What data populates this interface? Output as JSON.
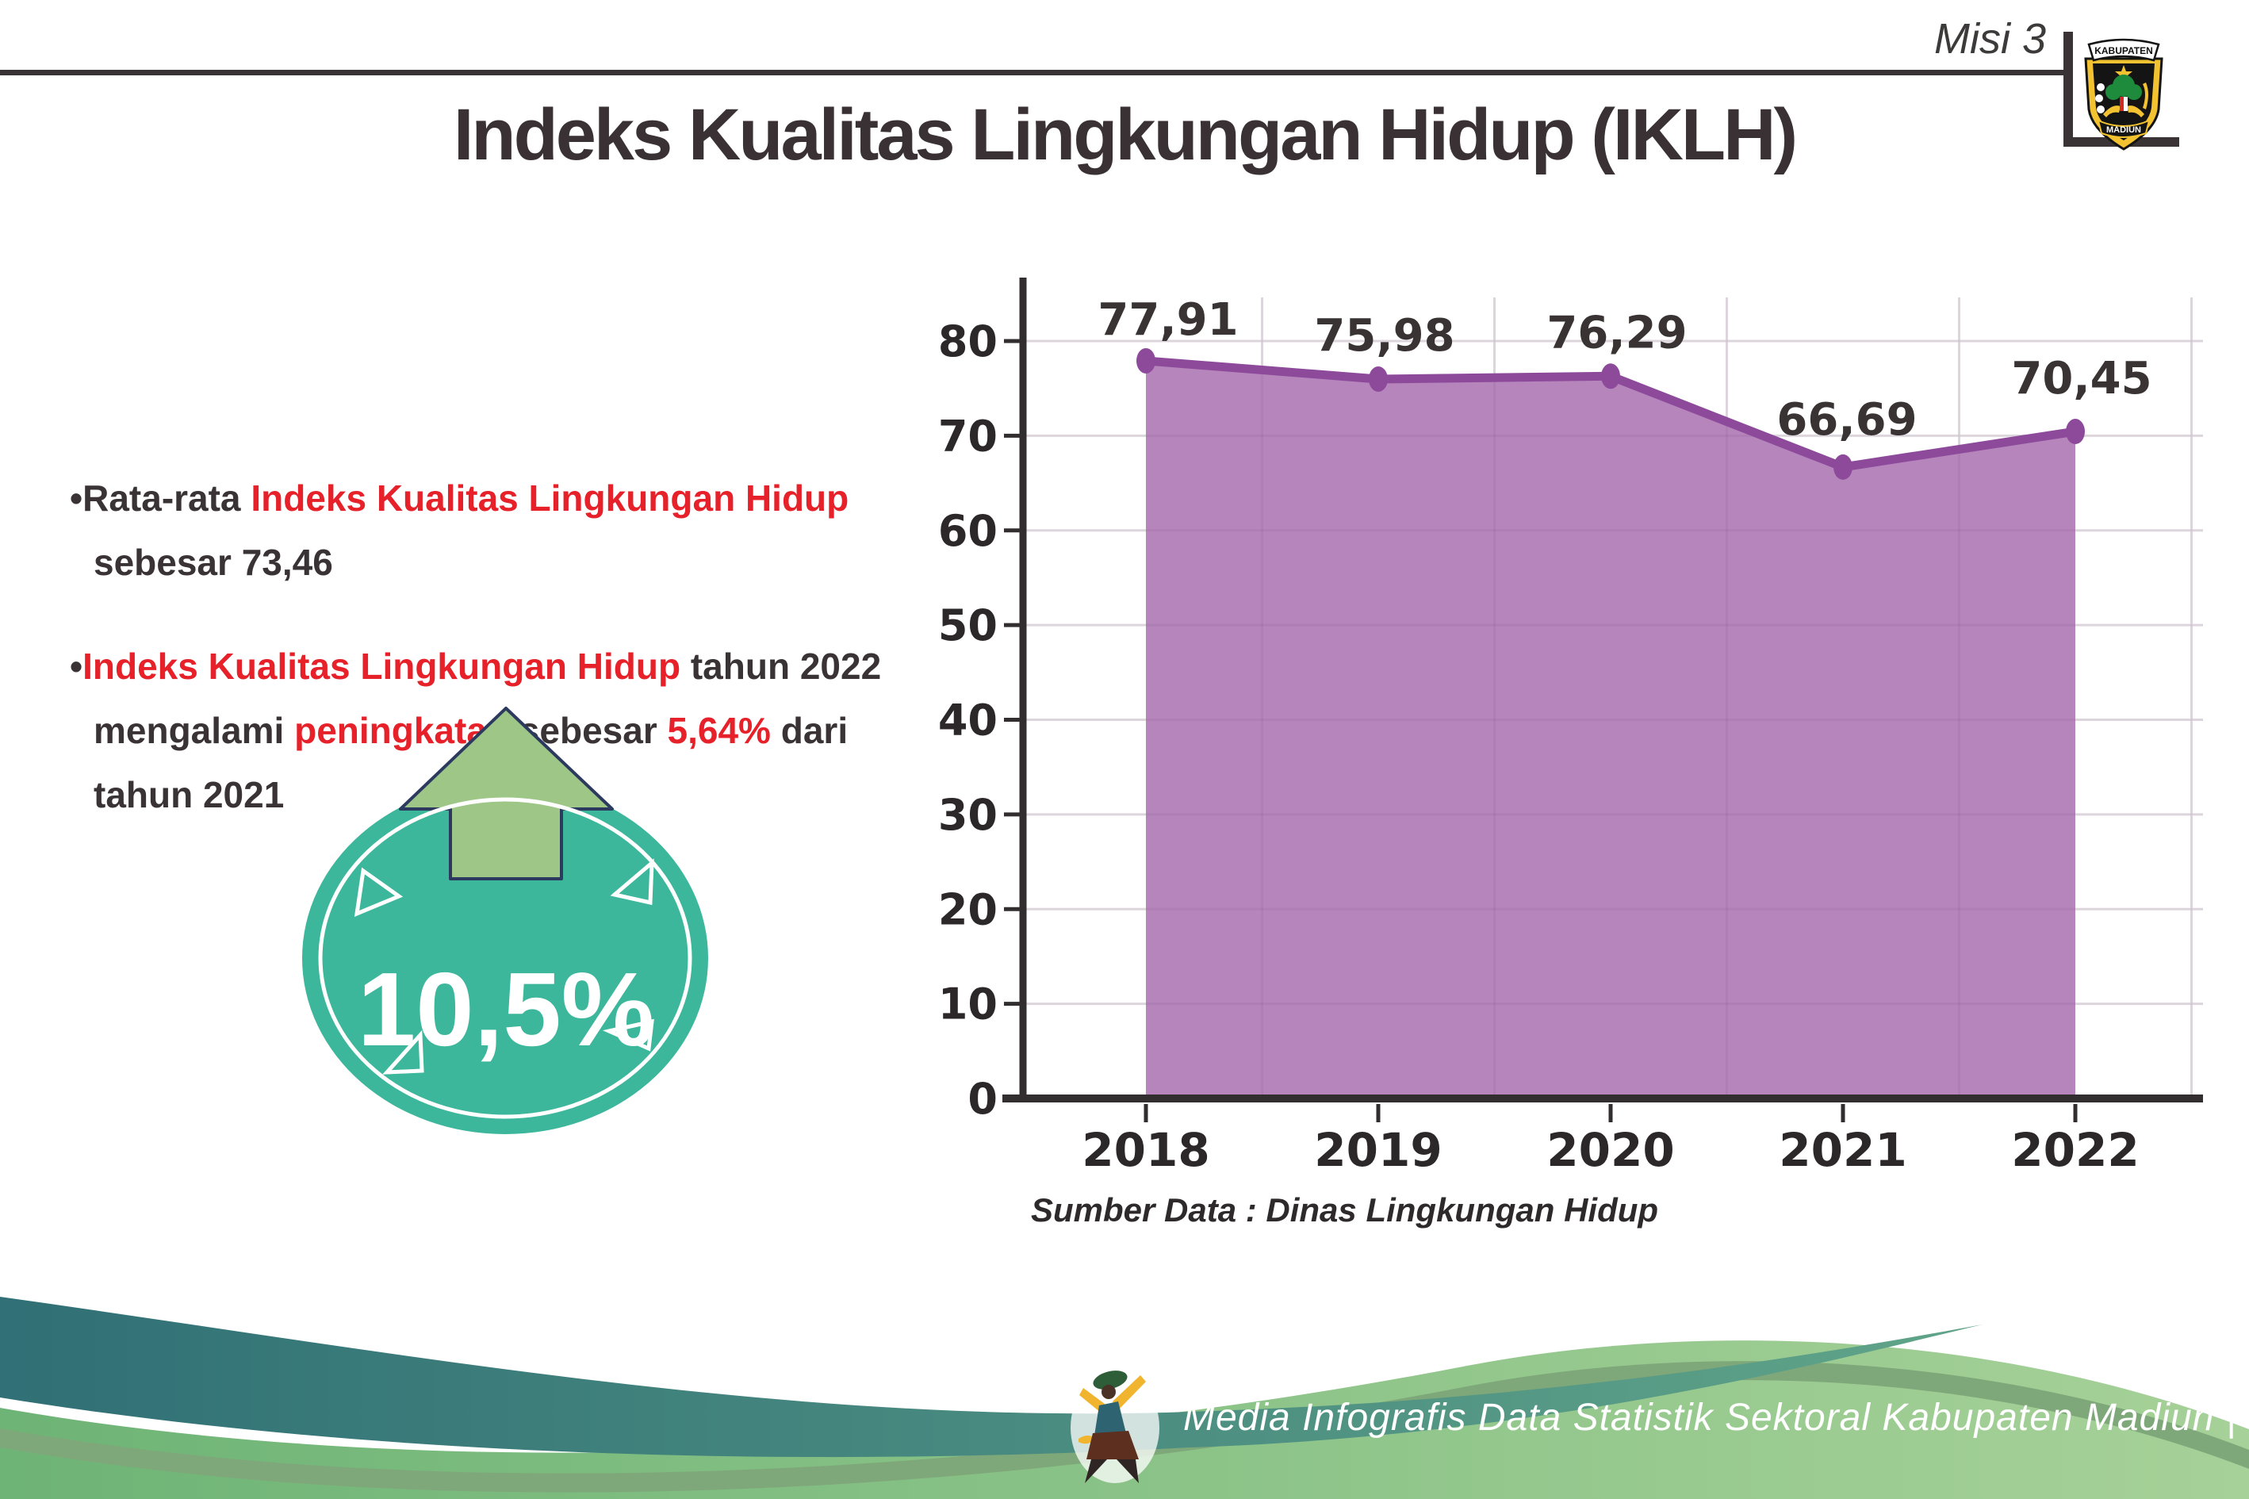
{
  "header": {
    "mission_label": "Misi 3",
    "logo": {
      "top_text": "KABUPATEN",
      "bottom_text": "MADIUN"
    }
  },
  "title": "Indeks Kualitas Lingkungan Hidup (IKLH)",
  "bullets": [
    {
      "lines": [
        {
          "segments": [
            {
              "t": "•",
              "c": "dark"
            },
            {
              "t": "Rata-rata ",
              "c": "dark"
            },
            {
              "t": "Indeks Kualitas Lingkungan Hidup",
              "c": "red"
            }
          ]
        },
        {
          "segments": [
            {
              "t": "sebesar 73,46",
              "c": "dark"
            }
          ]
        }
      ]
    },
    {
      "lines": [
        {
          "segments": [
            {
              "t": "•",
              "c": "dark"
            },
            {
              "t": "Indeks Kualitas Lingkungan Hidup",
              "c": "red"
            },
            {
              "t": " tahun 2022",
              "c": "dark"
            }
          ]
        },
        {
          "segments": [
            {
              "t": "mengalami ",
              "c": "dark"
            },
            {
              "t": "peningkatan",
              "c": "red"
            },
            {
              "t": " sebesar ",
              "c": "dark"
            },
            {
              "t": "5,64%",
              "c": "red"
            },
            {
              "t": " dari",
              "c": "dark"
            }
          ]
        },
        {
          "segments": [
            {
              "t": "tahun 2021",
              "c": "dark"
            }
          ]
        }
      ]
    }
  ],
  "badge": {
    "value": "10,5%",
    "direction": "up"
  },
  "chart_data": {
    "type": "area",
    "categories": [
      "2018",
      "2019",
      "2020",
      "2021",
      "2022"
    ],
    "values": [
      77.91,
      75.98,
      76.29,
      66.69,
      70.45
    ],
    "value_labels": [
      "77,91",
      "75,98",
      "76,29",
      "66,69",
      "70,45"
    ],
    "title": "",
    "xlabel": "",
    "ylabel": "",
    "ylim": [
      0,
      85
    ],
    "yticks": [
      0,
      10,
      20,
      30,
      40,
      50,
      60,
      70,
      80
    ],
    "grid": true,
    "legend": "none"
  },
  "source": "Sumber Data : Dinas Lingkungan Hidup",
  "footer": {
    "text": "Media Infografis Data Statistik Sektoral Kabupaten Madiun |"
  },
  "colors": {
    "text_dark": "#3a3335",
    "accent_red": "#e62129",
    "chart_area_fill": "#b585bc",
    "chart_line": "#8d4a9b",
    "grid": "#e7e4e6",
    "axis": "#322d2e",
    "badge_teal": "#3cb79b",
    "arrow_green": "#9dc687",
    "arrow_outline": "#2b3a5e",
    "footer_teal_dark": "#307076",
    "footer_teal_light": "#60a489",
    "footer_green_dark": "#6eb476",
    "footer_green_light": "#a6d198",
    "footer_green_edge": "#7fa87a"
  }
}
